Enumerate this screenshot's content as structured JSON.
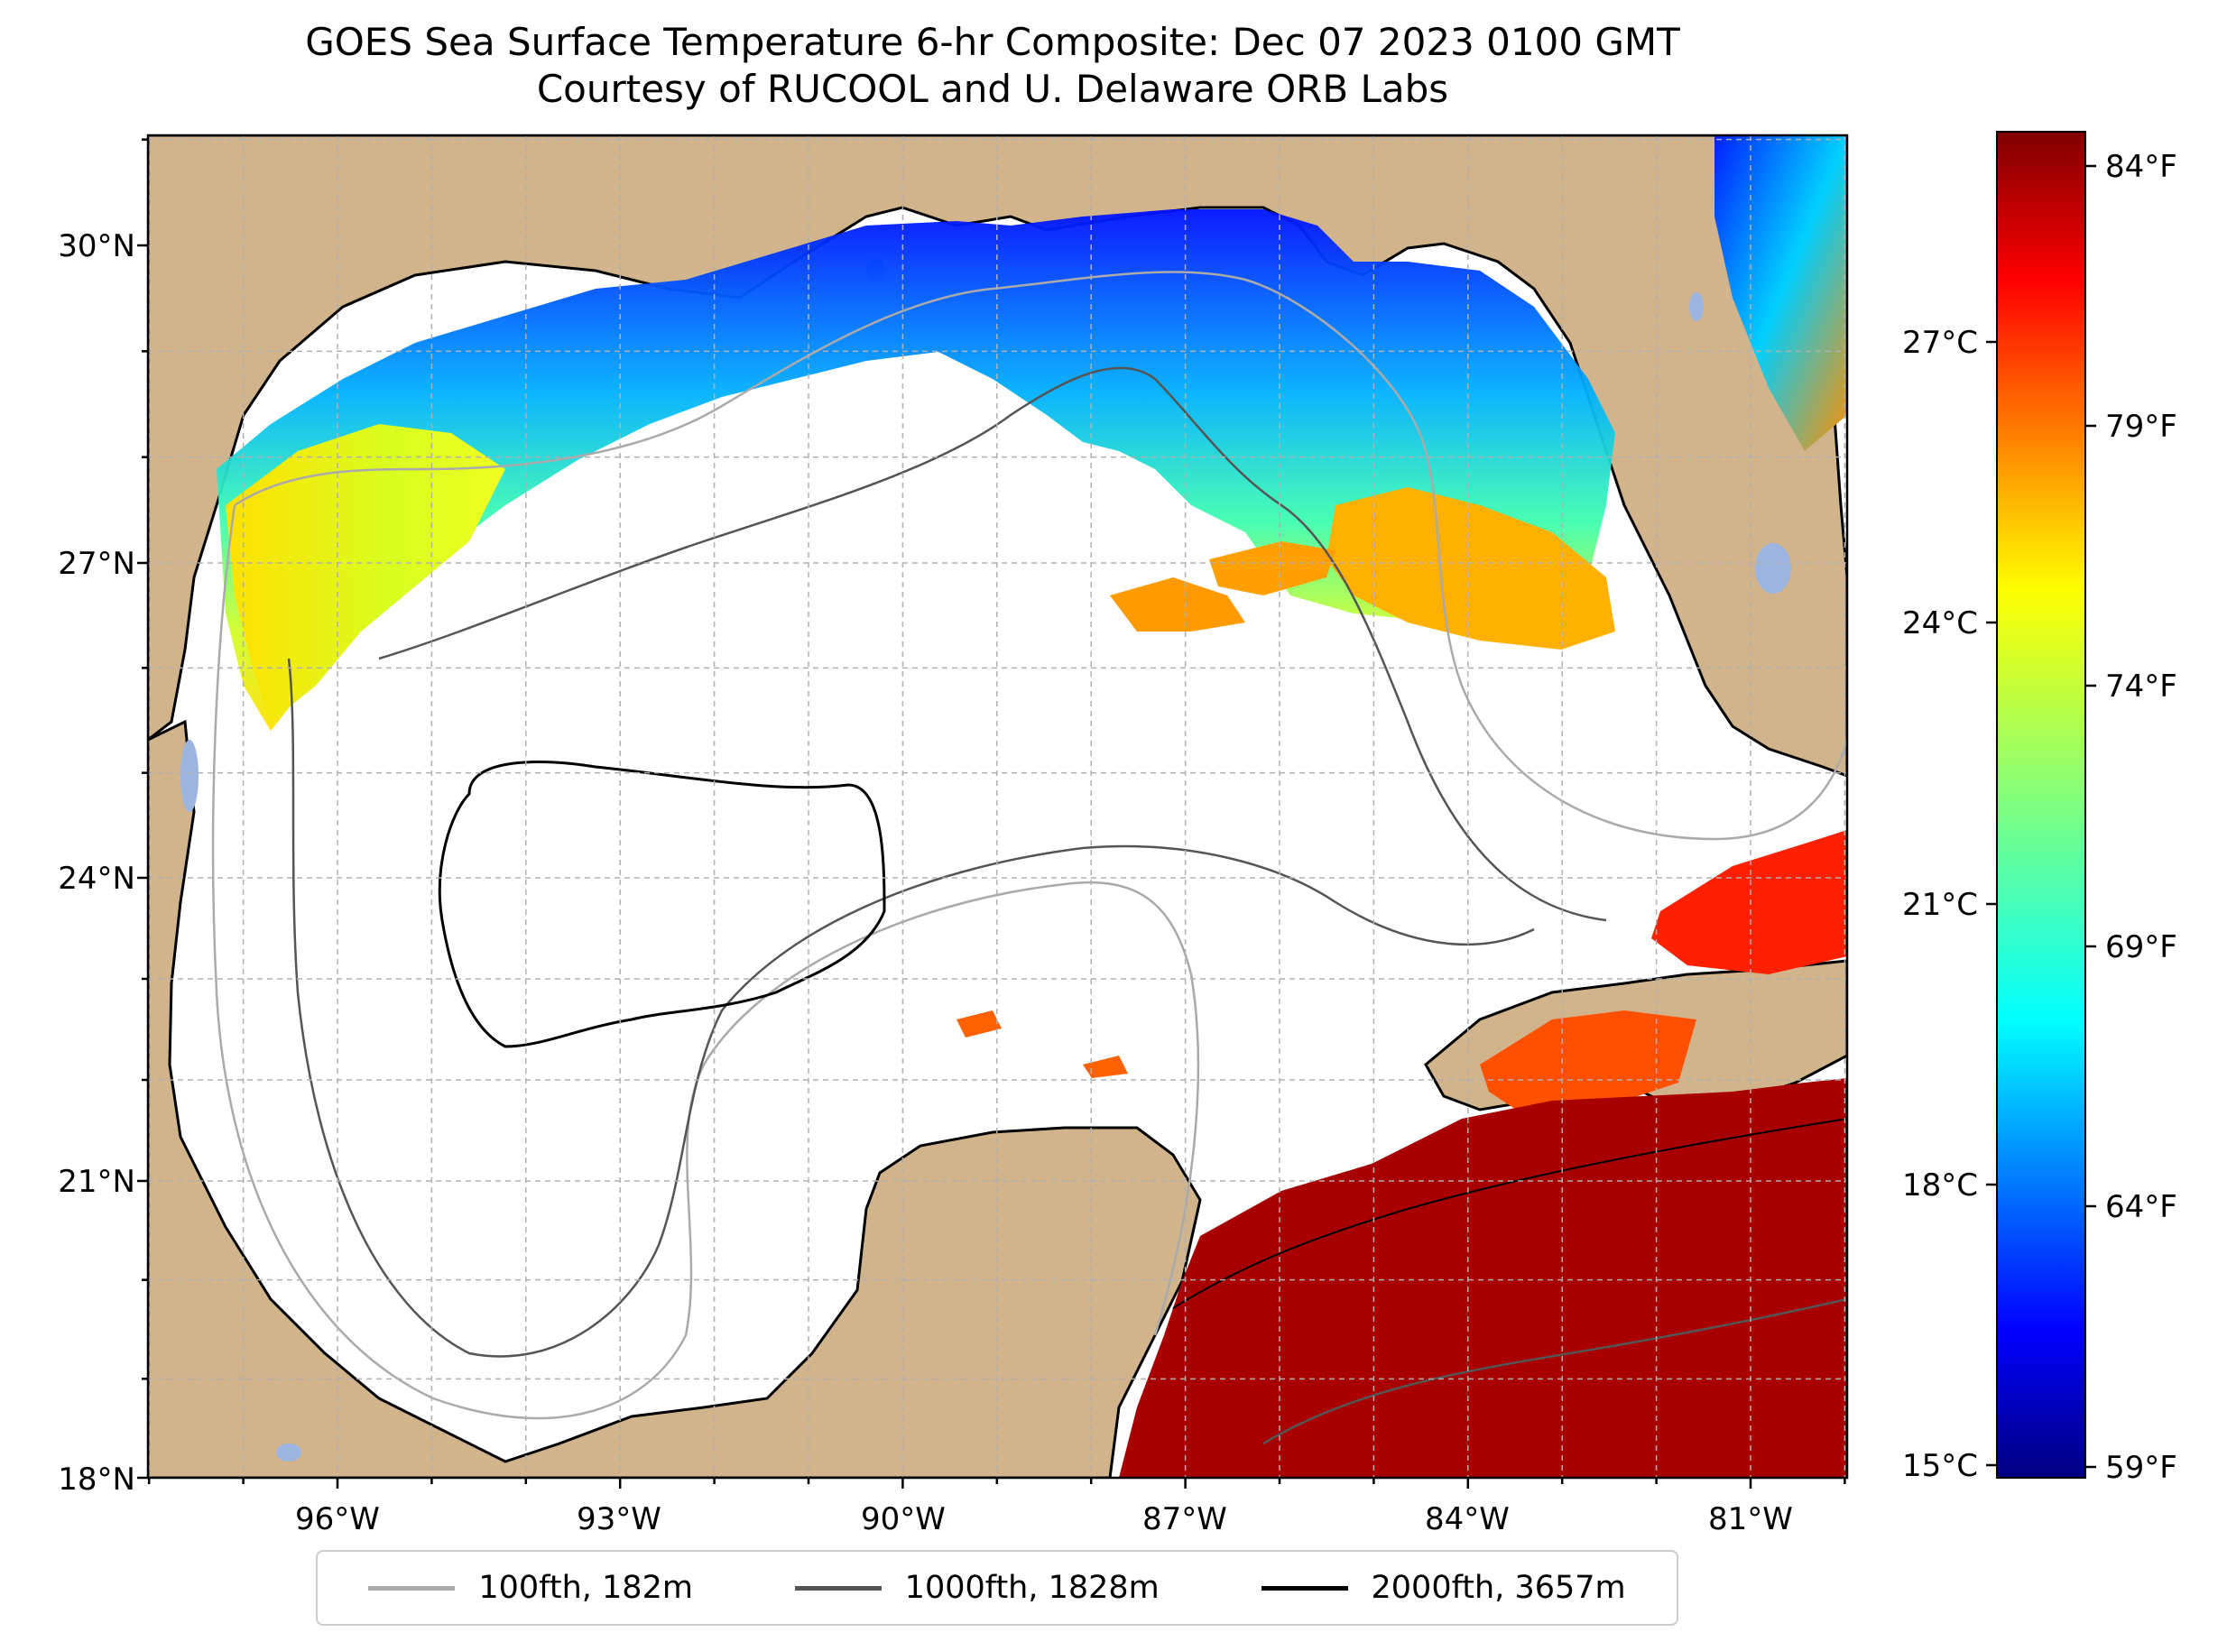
{
  "title": {
    "line1": "GOES Sea Surface Temperature 6-hr Composite: Dec 07 2023 0100 GMT",
    "line2": "Courtesy of RUCOOL and U. Delaware ORB Labs"
  },
  "map": {
    "lat_labels": [
      "30°N",
      "27°N",
      "24°N",
      "21°N",
      "18°N"
    ],
    "lon_labels": [
      "96°W",
      "93°W",
      "90°W",
      "87°W",
      "84°W",
      "81°W"
    ],
    "lat_values": [
      30,
      27,
      24,
      21,
      18
    ],
    "lon_values": [
      -96,
      -93,
      -90,
      -87,
      -84,
      -81
    ],
    "colors": {
      "land": "#d2b48c",
      "ocean": "#ffffff",
      "grid": "#b0b0b0",
      "lakes": "#9bb5e0"
    }
  },
  "colorbar": {
    "celsius_labels": [
      "27°C",
      "24°C",
      "21°C",
      "18°C",
      "15°C"
    ],
    "fahrenheit_labels": [
      "84°F",
      "79°F",
      "74°F",
      "69°F",
      "64°F",
      "59°F"
    ],
    "colormap": "jet"
  },
  "legend": {
    "items": [
      {
        "label": "100fth, 182m",
        "color": "#aaaaaa"
      },
      {
        "label": "1000fth, 1828m",
        "color": "#555555"
      },
      {
        "label": "2000fth, 3657m",
        "color": "#000000"
      }
    ]
  }
}
